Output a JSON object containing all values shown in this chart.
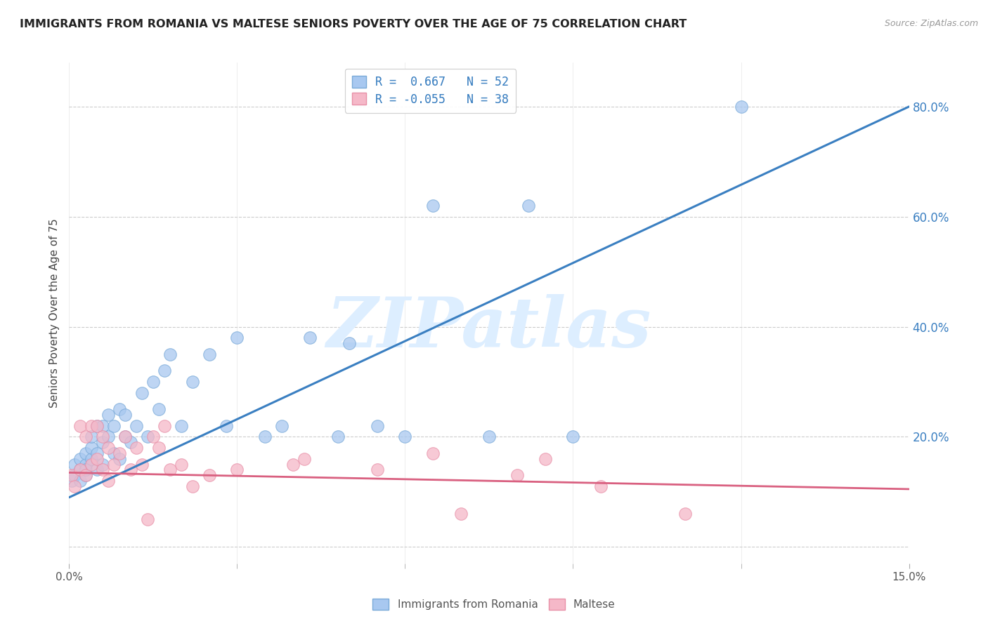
{
  "title": "IMMIGRANTS FROM ROMANIA VS MALTESE SENIORS POVERTY OVER THE AGE OF 75 CORRELATION CHART",
  "source": "Source: ZipAtlas.com",
  "ylabel": "Seniors Poverty Over the Age of 75",
  "yticks_labels": [
    "",
    "20.0%",
    "40.0%",
    "60.0%",
    "80.0%"
  ],
  "ytick_vals": [
    0.0,
    0.2,
    0.4,
    0.6,
    0.8
  ],
  "xlim": [
    0.0,
    0.15
  ],
  "ylim": [
    -0.03,
    0.88
  ],
  "legend_labels": [
    "Immigrants from Romania",
    "Maltese"
  ],
  "legend_R_blue": "R =  0.667",
  "legend_R_pink": "R = -0.055",
  "legend_N_blue": "N = 52",
  "legend_N_pink": "N = 38",
  "blue_fill": "#a8c8f0",
  "pink_fill": "#f5b8c8",
  "blue_edge": "#7aaad8",
  "pink_edge": "#e890a8",
  "blue_line_color": "#3a7fc1",
  "pink_line_color": "#d96080",
  "watermark": "ZIPatlas",
  "watermark_color": "#ddeeff",
  "blue_scatter_x": [
    0.0005,
    0.001,
    0.001,
    0.002,
    0.002,
    0.002,
    0.003,
    0.003,
    0.003,
    0.003,
    0.004,
    0.004,
    0.004,
    0.005,
    0.005,
    0.005,
    0.006,
    0.006,
    0.006,
    0.007,
    0.007,
    0.008,
    0.008,
    0.009,
    0.009,
    0.01,
    0.01,
    0.011,
    0.012,
    0.013,
    0.014,
    0.015,
    0.016,
    0.017,
    0.018,
    0.02,
    0.022,
    0.025,
    0.028,
    0.03,
    0.035,
    0.038,
    0.043,
    0.048,
    0.05,
    0.055,
    0.06,
    0.065,
    0.075,
    0.082,
    0.09,
    0.12
  ],
  "blue_scatter_y": [
    0.12,
    0.13,
    0.15,
    0.12,
    0.14,
    0.16,
    0.13,
    0.15,
    0.17,
    0.14,
    0.16,
    0.18,
    0.2,
    0.14,
    0.17,
    0.22,
    0.15,
    0.19,
    0.22,
    0.2,
    0.24,
    0.17,
    0.22,
    0.16,
    0.25,
    0.2,
    0.24,
    0.19,
    0.22,
    0.28,
    0.2,
    0.3,
    0.25,
    0.32,
    0.35,
    0.22,
    0.3,
    0.35,
    0.22,
    0.38,
    0.2,
    0.22,
    0.38,
    0.2,
    0.37,
    0.22,
    0.2,
    0.62,
    0.2,
    0.62,
    0.2,
    0.8
  ],
  "pink_scatter_x": [
    0.0005,
    0.001,
    0.002,
    0.002,
    0.003,
    0.003,
    0.004,
    0.004,
    0.005,
    0.005,
    0.006,
    0.006,
    0.007,
    0.007,
    0.008,
    0.009,
    0.01,
    0.011,
    0.012,
    0.013,
    0.014,
    0.015,
    0.016,
    0.017,
    0.018,
    0.02,
    0.022,
    0.025,
    0.03,
    0.04,
    0.042,
    0.055,
    0.065,
    0.07,
    0.08,
    0.085,
    0.095,
    0.11
  ],
  "pink_scatter_y": [
    0.13,
    0.11,
    0.22,
    0.14,
    0.13,
    0.2,
    0.15,
    0.22,
    0.16,
    0.22,
    0.14,
    0.2,
    0.18,
    0.12,
    0.15,
    0.17,
    0.2,
    0.14,
    0.18,
    0.15,
    0.05,
    0.2,
    0.18,
    0.22,
    0.14,
    0.15,
    0.11,
    0.13,
    0.14,
    0.15,
    0.16,
    0.14,
    0.17,
    0.06,
    0.13,
    0.16,
    0.11,
    0.06
  ],
  "blue_line_x": [
    0.0,
    0.15
  ],
  "blue_line_y": [
    0.09,
    0.8
  ],
  "pink_line_x": [
    0.0,
    0.15
  ],
  "pink_line_y": [
    0.135,
    0.105
  ],
  "grid_color": "#cccccc",
  "bg_color": "#ffffff"
}
